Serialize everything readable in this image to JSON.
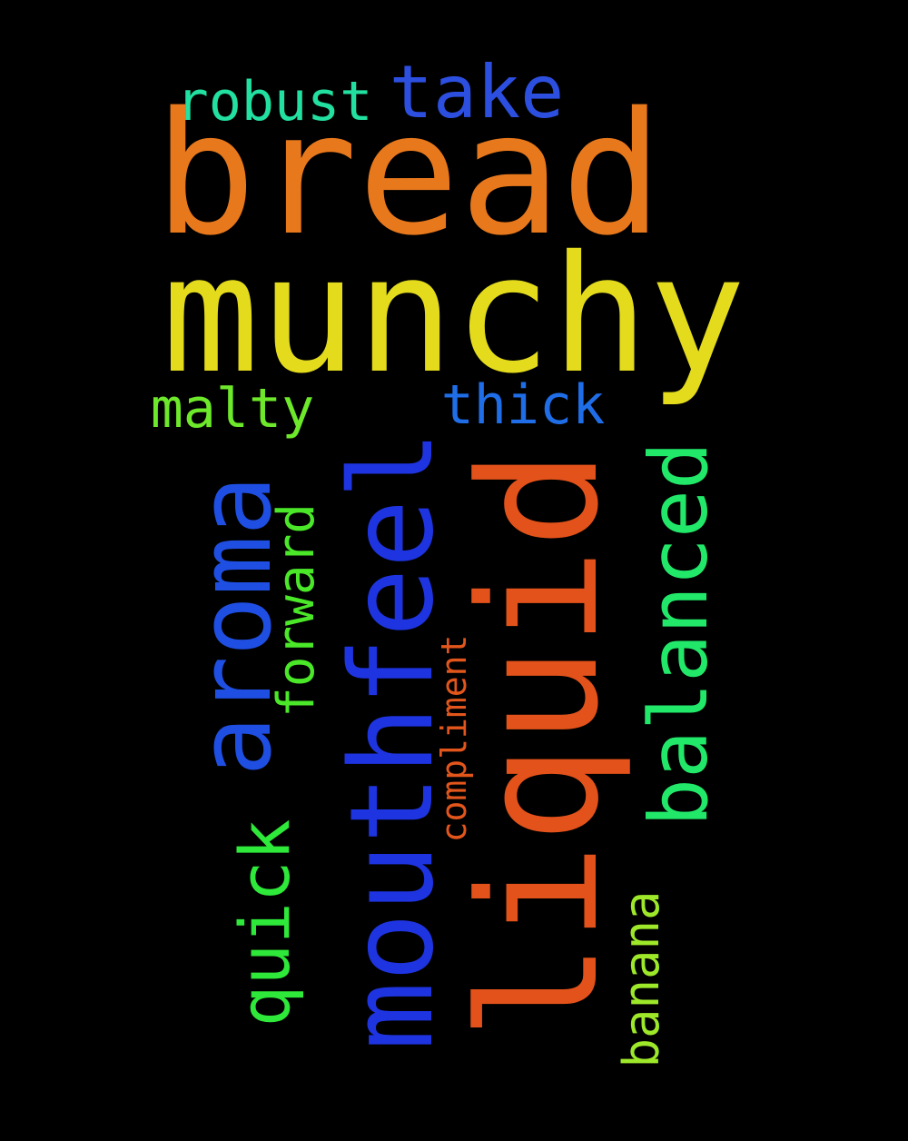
{
  "words": [
    {
      "id": "bread",
      "text": "bread",
      "color": "#e8781c"
    },
    {
      "id": "munchy",
      "text": "munchy",
      "color": "#e3db1c"
    },
    {
      "id": "take",
      "text": "take",
      "color": "#2c4fe0"
    },
    {
      "id": "robust",
      "text": "robust",
      "color": "#22e0a0"
    },
    {
      "id": "malty",
      "text": "malty",
      "color": "#6ee82a"
    },
    {
      "id": "thick",
      "text": "thick",
      "color": "#1f6ee8"
    },
    {
      "id": "liquid",
      "text": "liquid",
      "color": "#e2521a"
    },
    {
      "id": "mouthfeel",
      "text": "mouthfeel",
      "color": "#1e34e0"
    },
    {
      "id": "aroma",
      "text": "aroma",
      "color": "#1f4fe2"
    },
    {
      "id": "balanced",
      "text": "balanced",
      "color": "#22e86a"
    },
    {
      "id": "forward",
      "text": "forward",
      "color": "#4be82a"
    },
    {
      "id": "quick",
      "text": "quick",
      "color": "#2ee83a"
    },
    {
      "id": "compliment",
      "text": "compliment",
      "color": "#e2561c"
    },
    {
      "id": "banana",
      "text": "banana",
      "color": "#9ee82a"
    }
  ]
}
